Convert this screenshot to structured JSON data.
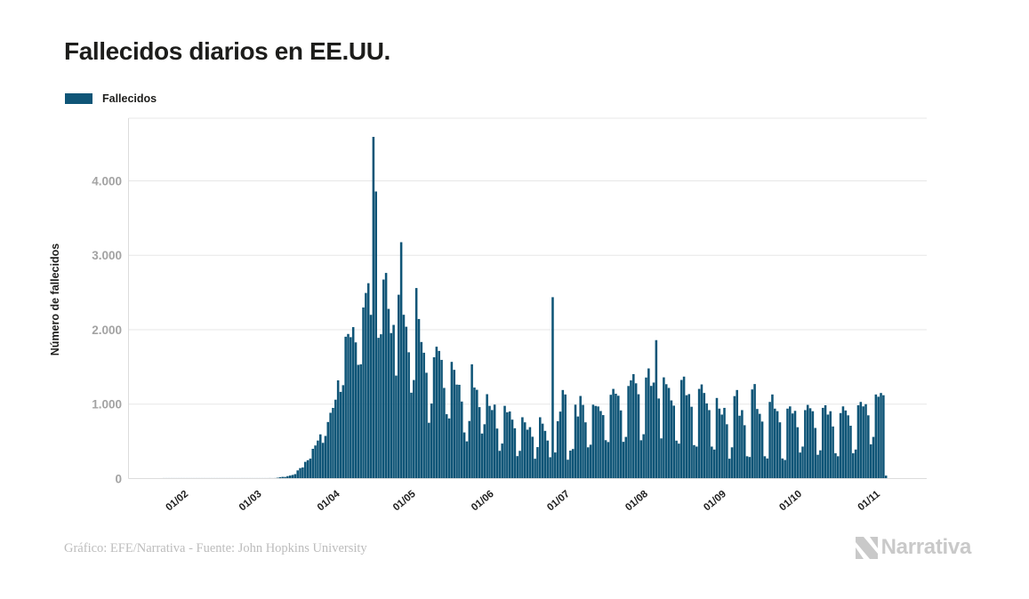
{
  "header": {
    "title": "Fallecidos diarios en EE.UU."
  },
  "legend": {
    "label": "Fallecidos"
  },
  "footer": {
    "credit": "Gráfico: EFE/Narrativa - Fuente: John Hopkins University",
    "brand": "Narrativa"
  },
  "colors": {
    "bar": "#0f5577",
    "grid": "#e7e7e7",
    "axis_line": "#dcdcdc",
    "y_tick_text": "#a3a3a3",
    "x_tick_text": "#1f1f1f",
    "title_text": "#1d1d1b",
    "footer_text": "#bcbcbc",
    "brand_text": "#c9c9c9"
  },
  "chart_data": {
    "type": "bar",
    "title": "Fallecidos diarios en EE.UU.",
    "series_name": "Fallecidos",
    "xlabel": "",
    "ylabel": "Número de fallecidos",
    "ylim": [
      0,
      4842
    ],
    "grid": true,
    "legend_position": "top-left",
    "x_tick_labels": [
      "01/02",
      "01/03",
      "01/04",
      "01/05",
      "01/06",
      "01/07",
      "01/08",
      "01/09",
      "01/10",
      "01/11"
    ],
    "y_ticks": [
      {
        "value": 0,
        "label": "0"
      },
      {
        "value": 1000,
        "label": "1.000"
      },
      {
        "value": 2000,
        "label": "2.000"
      },
      {
        "value": 3000,
        "label": "3.000"
      },
      {
        "value": 4000,
        "label": "4.000"
      }
    ],
    "start_date": "26/01",
    "end_date": "07/11",
    "values": [
      0,
      0,
      0,
      0,
      0,
      0,
      0,
      0,
      0,
      0,
      0,
      0,
      0,
      0,
      0,
      0,
      0,
      0,
      0,
      0,
      0,
      0,
      0,
      0,
      0,
      0,
      0,
      0,
      0,
      0,
      0,
      0,
      0,
      0,
      0,
      1,
      1,
      2,
      4,
      3,
      4,
      5,
      7,
      4,
      7,
      11,
      18,
      23,
      22,
      33,
      41,
      49,
      60,
      110,
      141,
      150,
      225,
      247,
      268,
      400,
      445,
      511,
      594,
      480,
      573,
      760,
      884,
      950,
      1060,
      1320,
      1165,
      1255,
      1906,
      1943,
      1900,
      2035,
      1830,
      1528,
      1535,
      2299,
      2494,
      2625,
      2200,
      4591,
      3857,
      1891,
      1939,
      2674,
      2763,
      2280,
      1955,
      2065,
      1384,
      2470,
      3176,
      2201,
      2040,
      1697,
      1154,
      1324,
      2560,
      2144,
      1835,
      1691,
      1422,
      750,
      1008,
      1630,
      1772,
      1715,
      1595,
      1218,
      865,
      808,
      1568,
      1461,
      1263,
      1260,
      1035,
      620,
      500,
      774,
      1535,
      1223,
      1193,
      960,
      605,
      730,
      1134,
      977,
      921,
      994,
      672,
      373,
      471,
      977,
      891,
      902,
      792,
      676,
      302,
      373,
      824,
      756,
      657,
      691,
      562,
      267,
      423,
      824,
      738,
      641,
      511,
      287,
      2437,
      351,
      771,
      900,
      1190,
      1130,
      254,
      376,
      397,
      993,
      834,
      1110,
      990,
      756,
      420,
      455,
      993,
      976,
      969,
      908,
      853,
      516,
      491,
      1126,
      1205,
      1140,
      1113,
      916,
      494,
      560,
      1244,
      1320,
      1403,
      1280,
      1133,
      515,
      596,
      1358,
      1480,
      1245,
      1290,
      1860,
      1076,
      540,
      1360,
      1268,
      1218,
      1050,
      980,
      510,
      470,
      1325,
      1370,
      1120,
      1135,
      965,
      450,
      430,
      1205,
      1265,
      1150,
      1010,
      920,
      430,
      390,
      1083,
      940,
      860,
      950,
      730,
      267,
      420,
      1108,
      1190,
      845,
      920,
      717,
      300,
      290,
      1198,
      1270,
      935,
      870,
      766,
      300,
      270,
      1030,
      1130,
      940,
      906,
      756,
      270,
      250,
      940,
      970,
      875,
      910,
      690,
      350,
      430,
      920,
      990,
      945,
      905,
      680,
      320,
      380,
      950,
      985,
      860,
      905,
      700,
      340,
      300,
      880,
      970,
      915,
      850,
      710,
      340,
      390,
      985,
      1030,
      970,
      1000,
      850,
      460,
      560,
      1130,
      1100,
      1150,
      1120,
      40
    ]
  }
}
